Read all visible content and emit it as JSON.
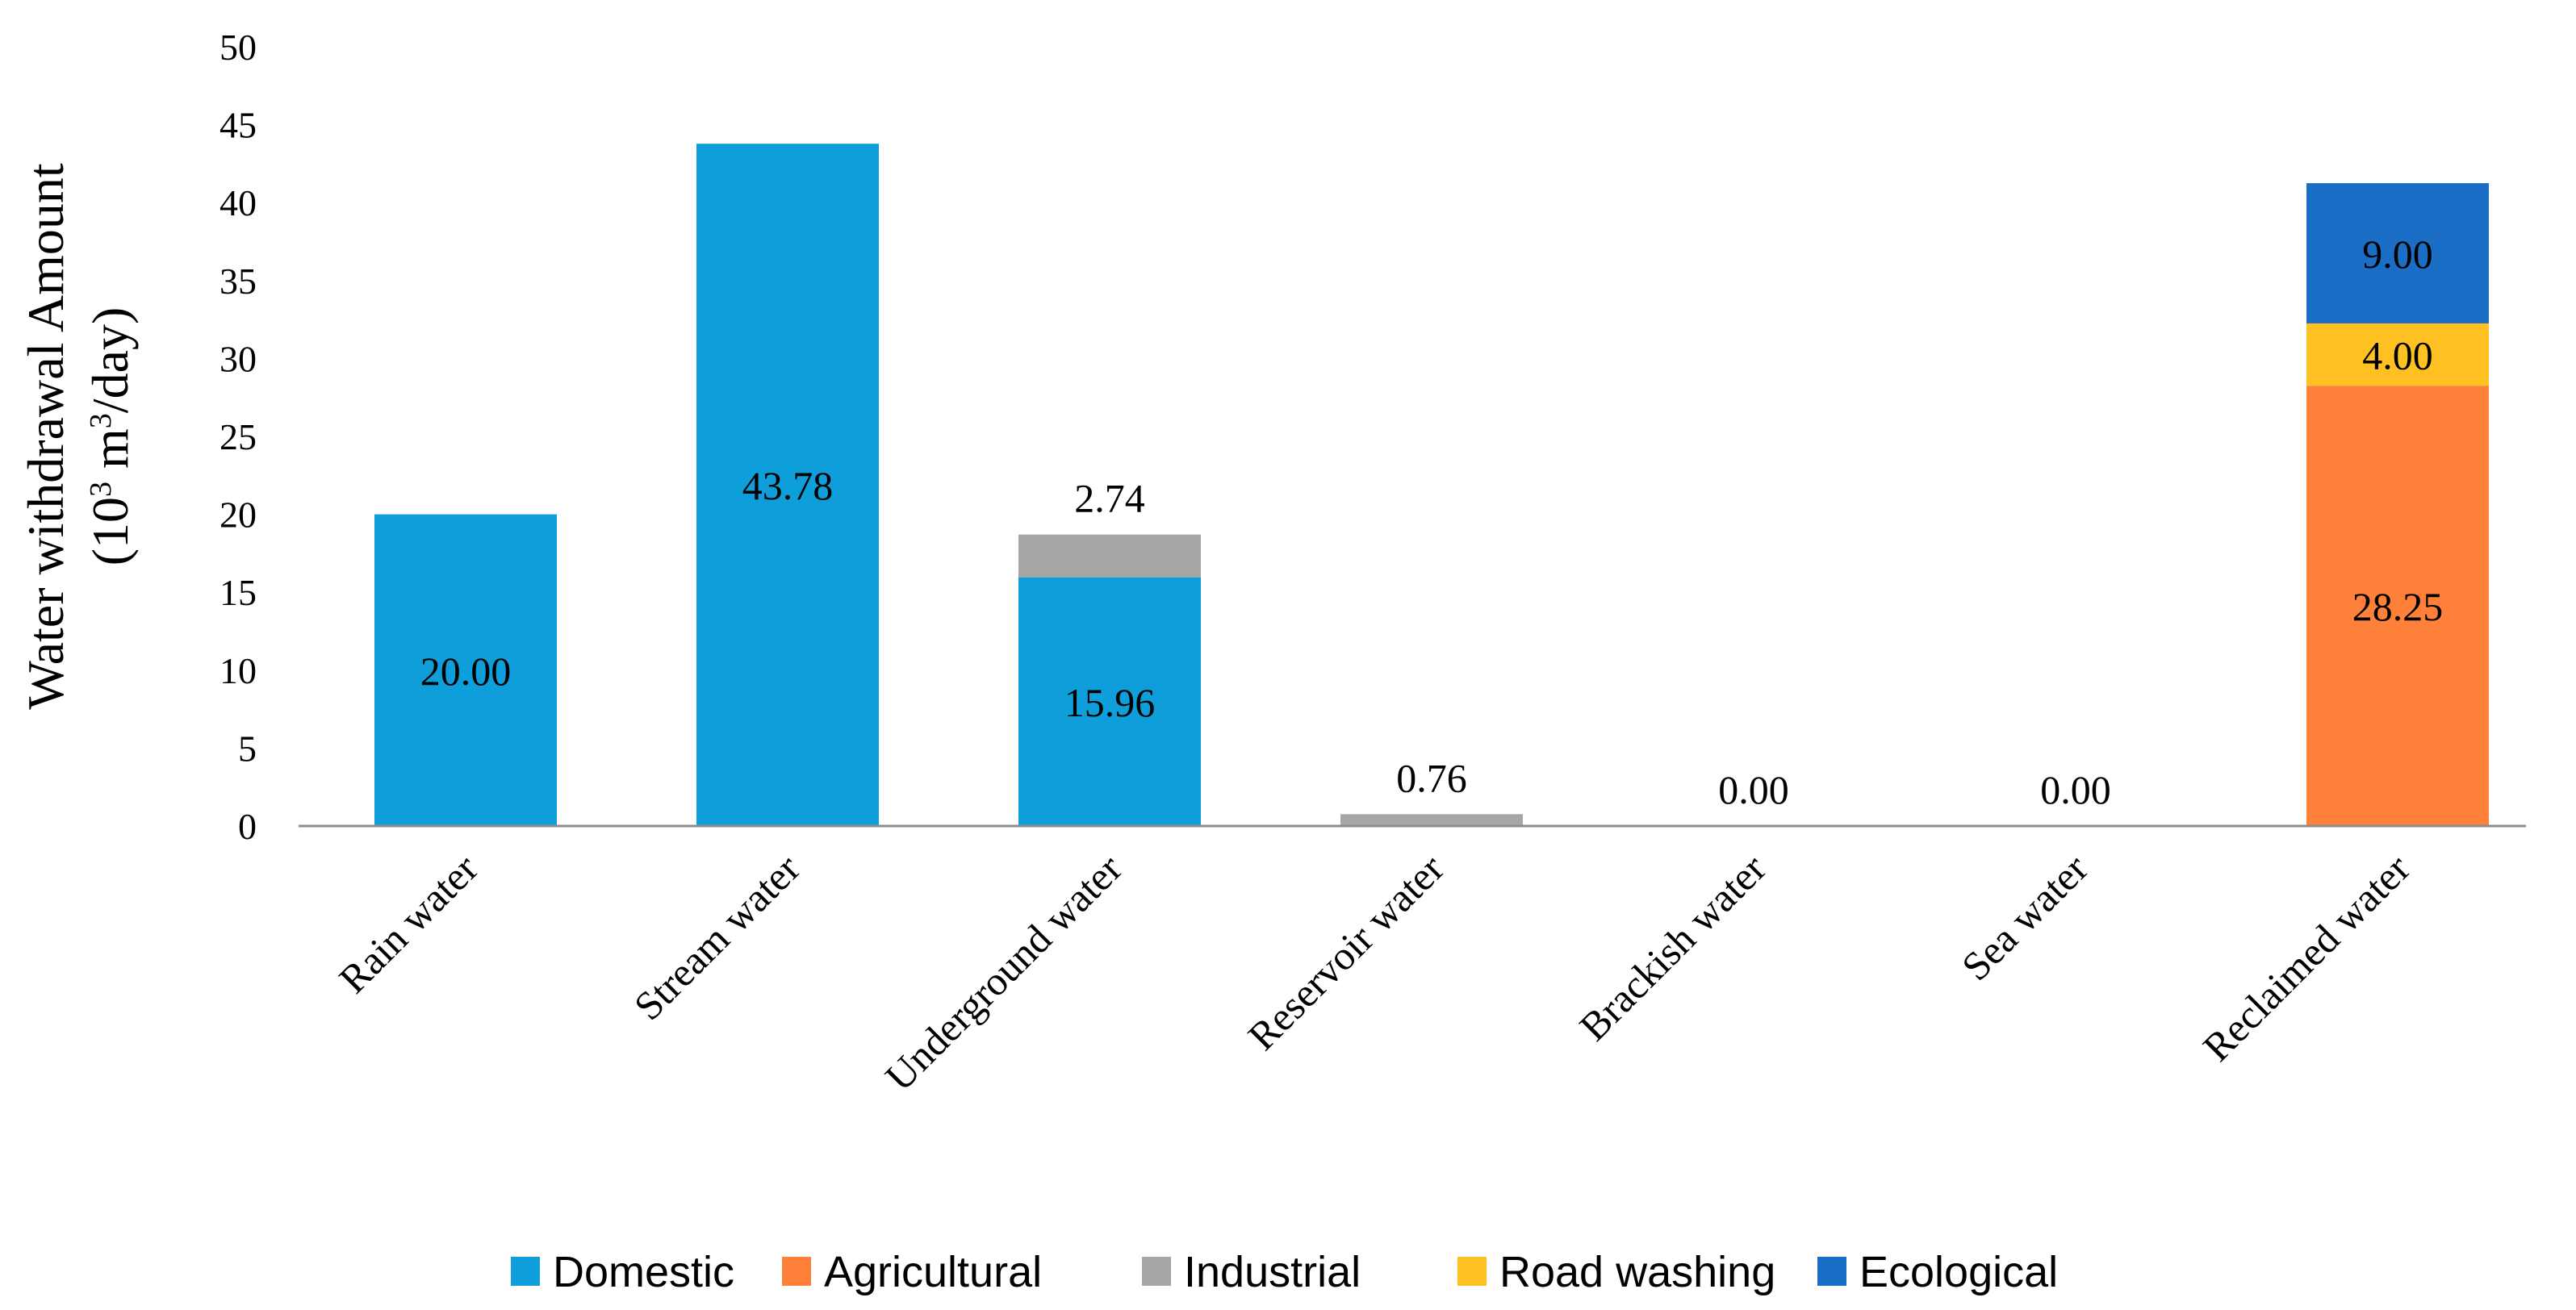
{
  "chart_data": {
    "type": "bar",
    "stacked": true,
    "title": "",
    "ylabel_line1": "Water withdrawal Amount",
    "ylabel_line2_prefix": "(10",
    "ylabel_line2_exp": "3",
    "ylabel_line2_mid": " m",
    "ylabel_line2_exp2": "3",
    "ylabel_line2_suffix": "/day)",
    "ylim": [
      0,
      50
    ],
    "yticks": [
      0,
      5,
      10,
      15,
      20,
      25,
      30,
      35,
      40,
      45,
      50
    ],
    "categories": [
      "Rain water",
      "Stream water",
      "Underground water",
      "Reservoir water",
      "Brackish water",
      "Sea water",
      "Reclaimed water"
    ],
    "series": [
      {
        "name": "Domestic",
        "color": "#0E9FDB",
        "values": [
          20.0,
          43.78,
          15.96,
          0,
          0,
          0,
          0
        ]
      },
      {
        "name": "Agricultural",
        "color": "#FF8038",
        "values": [
          0,
          0,
          0,
          0,
          0,
          0,
          28.25
        ]
      },
      {
        "name": "Industrial",
        "color": "#A6A6A6",
        "values": [
          0,
          0,
          2.74,
          0.76,
          0,
          0,
          0
        ]
      },
      {
        "name": "Road washing",
        "color": "#FFC021",
        "values": [
          0,
          0,
          0,
          0,
          0,
          0,
          4.0
        ]
      },
      {
        "name": "Ecological",
        "color": "#1A6EC6",
        "values": [
          0,
          0,
          0,
          0,
          0,
          0,
          9.0
        ]
      }
    ],
    "data_labels": [
      {
        "category": "Rain water",
        "series": "Domestic",
        "text": "20.00",
        "placement": "inside"
      },
      {
        "category": "Stream water",
        "series": "Domestic",
        "text": "43.78",
        "placement": "inside"
      },
      {
        "category": "Underground water",
        "series": "Domestic",
        "text": "15.96",
        "placement": "inside"
      },
      {
        "category": "Underground water",
        "series": "Industrial",
        "text": "2.74",
        "placement": "above"
      },
      {
        "category": "Reservoir water",
        "series": "Industrial",
        "text": "0.76",
        "placement": "above"
      },
      {
        "category": "Brackish water",
        "series": "Domestic",
        "text": "0.00",
        "placement": "above"
      },
      {
        "category": "Sea water",
        "series": "Domestic",
        "text": "0.00",
        "placement": "above"
      },
      {
        "category": "Reclaimed water",
        "series": "Agricultural",
        "text": "28.25",
        "placement": "inside"
      },
      {
        "category": "Reclaimed water",
        "series": "Road washing",
        "text": "4.00",
        "placement": "inside"
      },
      {
        "category": "Reclaimed water",
        "series": "Ecological",
        "text": "9.00",
        "placement": "inside"
      }
    ],
    "legend_position": "bottom"
  }
}
